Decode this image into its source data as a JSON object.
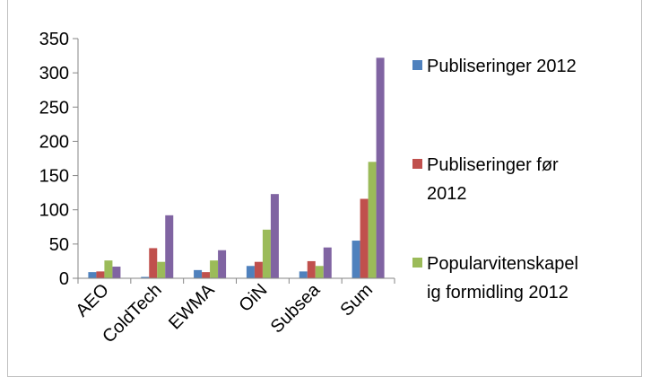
{
  "chart_data": {
    "type": "bar",
    "title": "",
    "xlabel": "",
    "ylabel": "",
    "ylim": [
      0,
      350
    ],
    "yticks": [
      "0",
      "50",
      "100",
      "150",
      "200",
      "250",
      "300",
      "350"
    ],
    "grid": false,
    "legend_position": "right",
    "categories": [
      "AEO",
      "ColdTech",
      "EWMA",
      "OiN",
      "Subsea",
      "Sum"
    ],
    "series": [
      {
        "name": "Publiseringer 2012",
        "color": "#4f81bd",
        "values": [
          9,
          2,
          12,
          18,
          10,
          55
        ]
      },
      {
        "name": "Publiseringer før 2012",
        "color": "#c0504d",
        "values": [
          10,
          44,
          9,
          24,
          25,
          116
        ]
      },
      {
        "name": "Popularvitenskapelig formidling 2012",
        "color": "#9bbb59",
        "values": [
          26,
          24,
          26,
          71,
          18,
          170
        ]
      },
      {
        "name": "",
        "color": "#8064a2",
        "values": [
          17,
          92,
          41,
          123,
          45,
          322
        ]
      }
    ],
    "legend_lines": [
      [
        "Publiseringer 2012"
      ],
      [
        "Publiseringer før",
        "2012"
      ],
      [
        "Popularvitenskapel",
        "ig formidling 2012"
      ]
    ]
  }
}
